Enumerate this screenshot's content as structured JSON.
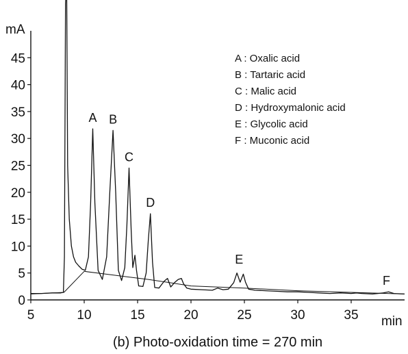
{
  "chart_data": {
    "type": "line",
    "title": "(b) Photo-oxidation time = 270 min",
    "xlabel": "min",
    "ylabel": "mA",
    "xlim": [
      5,
      40
    ],
    "ylim": [
      0,
      50
    ],
    "x_ticks": [
      5,
      10,
      15,
      20,
      25,
      30,
      35
    ],
    "y_ticks": [
      0,
      5,
      10,
      15,
      20,
      25,
      30,
      35,
      40,
      45
    ],
    "grid": false,
    "legend_position": "top-right",
    "legend": [
      "A : Oxalic acid",
      "B : Tartaric acid",
      "C : Malic acid",
      "D : Hydroxymalonic acid",
      "E : Glycolic acid",
      "F : Muconic acid"
    ],
    "peak_labels": [
      {
        "text": "A",
        "x": 10.8,
        "y": 31.8
      },
      {
        "text": "B",
        "x": 12.7,
        "y": 31.5
      },
      {
        "text": "C",
        "x": 14.2,
        "y": 24.5
      },
      {
        "text": "D",
        "x": 16.2,
        "y": 16.0
      },
      {
        "text": "E",
        "x": 24.5,
        "y": 5.5
      },
      {
        "text": "F",
        "x": 38.3,
        "y": 1.5
      }
    ],
    "series": [
      {
        "x": [
          5,
          6,
          7,
          7.8,
          8.05,
          8.15,
          8.25,
          8.35,
          8.45,
          8.6,
          8.8,
          9.0,
          9.2,
          9.5,
          9.8,
          10.1,
          10.4,
          10.6,
          10.8,
          11.0,
          11.3,
          11.7,
          12.1,
          12.4,
          12.7,
          12.95,
          13.2,
          13.5,
          13.8,
          14.0,
          14.2,
          14.4,
          14.55,
          14.75,
          14.9,
          15.1,
          15.5,
          15.8,
          16.0,
          16.2,
          16.4,
          16.6,
          17.0,
          17.5,
          17.8,
          18.1,
          18.5,
          18.8,
          19.1,
          19.3,
          19.6,
          20.0,
          21.0,
          22.0,
          22.5,
          23.0,
          23.5,
          24.0,
          24.3,
          24.6,
          24.9,
          25.1,
          25.4,
          26.0,
          27.0,
          28.0,
          29.0,
          30.0,
          31.0,
          32.0,
          33.0,
          34.0,
          35.0,
          35.5,
          36.0,
          37.0,
          37.5,
          38.0,
          38.5,
          39.0,
          40.0
        ],
        "y": [
          1.2,
          1.2,
          1.3,
          1.3,
          1.4,
          8,
          55,
          60,
          25,
          15,
          10,
          8.0,
          7.0,
          6.3,
          5.7,
          5.5,
          8,
          18,
          31.8,
          18,
          5.5,
          3.8,
          8,
          20,
          31.5,
          20,
          5.5,
          3.6,
          6,
          14,
          24.5,
          13,
          6,
          8.3,
          5.5,
          2.6,
          2.5,
          5,
          11,
          16.0,
          7,
          2.3,
          2.2,
          3.5,
          4.0,
          2.4,
          3.3,
          3.8,
          4.0,
          3.0,
          2.2,
          2.0,
          1.9,
          1.8,
          2.2,
          1.9,
          2.0,
          3.2,
          5.0,
          3.3,
          4.8,
          3.3,
          2.0,
          1.8,
          1.7,
          1.6,
          1.5,
          1.5,
          1.4,
          1.3,
          1.2,
          1.3,
          1.2,
          1.3,
          1.2,
          1.1,
          1.2,
          1.3,
          1.5,
          1.2,
          1.1
        ]
      },
      {
        "x": [
          5,
          8.1,
          10.0,
          12.0,
          14.0,
          16.0,
          18.0,
          20.0,
          25.0,
          30.0,
          35.0,
          40.0
        ],
        "y": [
          1.1,
          1.4,
          5.3,
          4.8,
          4.3,
          3.8,
          3.2,
          2.6,
          2.2,
          1.7,
          1.4,
          1.1
        ]
      }
    ]
  }
}
